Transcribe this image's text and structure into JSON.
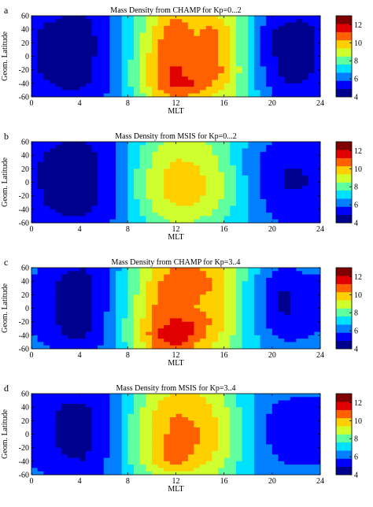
{
  "figure": {
    "panel_letters": [
      "a",
      "b",
      "c",
      "d"
    ],
    "colorbar_ticks": [
      "4",
      "6",
      "8",
      "10",
      "12"
    ],
    "colorbar_colors": [
      "#00008f",
      "#0000ff",
      "#0080ff",
      "#00e0ff",
      "#60ff9f",
      "#d0ff30",
      "#ffd000",
      "#ff6000",
      "#e00000",
      "#800000"
    ]
  },
  "chart_data": [
    {
      "type": "heatmap",
      "panel": "a",
      "title": "Mass Density from CHAMP for Kp=0...2",
      "xlabel": "MLT",
      "ylabel": "Geom. Latitude",
      "xlim": [
        0,
        24
      ],
      "ylim": [
        -60,
        60
      ],
      "x_ticks": [
        0,
        4,
        8,
        12,
        16,
        20,
        24
      ],
      "y_ticks": [
        60,
        40,
        20,
        0,
        -20,
        -40,
        -60
      ],
      "colorbar": {
        "ticks": [
          4,
          6,
          8,
          10,
          12
        ],
        "range": [
          4,
          13
        ]
      },
      "x": [
        0,
        1.5,
        3,
        4.5,
        6,
        7.5,
        9,
        10.5,
        12,
        13.5,
        15,
        16.5,
        18,
        19.5,
        21,
        22.5,
        24
      ],
      "y": [
        60,
        40,
        20,
        0,
        -20,
        -40,
        -60
      ],
      "z": [
        [
          5.4,
          5.2,
          4.9,
          4.9,
          5.4,
          6.5,
          8.0,
          9.3,
          10.3,
          9.6,
          9.4,
          8.8,
          7.4,
          5.9,
          5.3,
          5.1,
          5.4
        ],
        [
          5.1,
          4.6,
          4.4,
          4.6,
          5.3,
          6.4,
          8.2,
          9.8,
          11.2,
          10.1,
          10.6,
          9.4,
          7.4,
          5.3,
          4.5,
          4.5,
          5.1
        ],
        [
          5.0,
          4.5,
          4.3,
          4.5,
          5.2,
          6.5,
          8.4,
          10.2,
          11.4,
          10.3,
          10.9,
          9.5,
          7.3,
          5.3,
          4.4,
          4.6,
          5.0
        ],
        [
          5.0,
          4.6,
          4.4,
          4.5,
          5.3,
          6.6,
          8.5,
          10.4,
          10.5,
          10.6,
          10.4,
          9.6,
          7.2,
          5.4,
          4.4,
          4.4,
          5.0
        ],
        [
          5.1,
          4.6,
          4.4,
          4.6,
          5.3,
          6.7,
          8.7,
          10.6,
          11.6,
          10.3,
          11.2,
          9.7,
          7.4,
          5.5,
          4.6,
          4.5,
          5.1
        ],
        [
          5.3,
          4.9,
          4.6,
          4.8,
          5.5,
          6.7,
          8.7,
          10.5,
          11.8,
          11.3,
          10.3,
          9.2,
          7.4,
          5.8,
          4.9,
          4.9,
          5.3
        ],
        [
          5.6,
          5.3,
          5.1,
          5.2,
          5.7,
          6.4,
          8.0,
          9.6,
          10.4,
          10.0,
          9.4,
          8.7,
          7.4,
          6.2,
          5.5,
          5.4,
          5.6
        ]
      ]
    },
    {
      "type": "heatmap",
      "panel": "b",
      "title": "Mass Density from MSIS for Kp=0...2",
      "xlabel": "MLT",
      "ylabel": "Geom. Latitude",
      "xlim": [
        0,
        24
      ],
      "ylim": [
        -60,
        60
      ],
      "x_ticks": [
        0,
        4,
        8,
        12,
        16,
        20,
        24
      ],
      "y_ticks": [
        60,
        40,
        20,
        0,
        -20,
        -40,
        -60
      ],
      "colorbar": {
        "ticks": [
          4,
          6,
          8,
          10,
          12
        ],
        "range": [
          4,
          13
        ]
      },
      "x": [
        0,
        1.5,
        3,
        4.5,
        6,
        7.5,
        9,
        10.5,
        12,
        13.5,
        15,
        16.5,
        18,
        19.5,
        21,
        22.5,
        24
      ],
      "y": [
        60,
        40,
        20,
        0,
        -20,
        -40,
        -60
      ],
      "z": [
        [
          5.5,
          5.2,
          4.9,
          4.9,
          5.3,
          6.3,
          7.4,
          8.3,
          8.8,
          8.7,
          8.3,
          7.6,
          6.6,
          5.9,
          5.6,
          5.5,
          5.5
        ],
        [
          5.2,
          4.7,
          4.5,
          4.5,
          5.1,
          6.2,
          7.6,
          8.8,
          9.3,
          9.2,
          8.7,
          7.7,
          6.4,
          5.6,
          5.2,
          5.2,
          5.2
        ],
        [
          5.1,
          4.6,
          4.4,
          4.4,
          5.0,
          6.2,
          7.9,
          9.1,
          9.7,
          9.6,
          9.0,
          7.9,
          6.4,
          5.5,
          4.9,
          4.9,
          5.1
        ],
        [
          5.1,
          4.6,
          4.4,
          4.4,
          5.1,
          6.3,
          8.0,
          9.3,
          9.9,
          9.8,
          9.2,
          8.0,
          6.5,
          5.5,
          4.8,
          4.8,
          5.1
        ],
        [
          5.2,
          4.7,
          4.5,
          4.5,
          5.1,
          6.3,
          8.0,
          9.2,
          9.8,
          9.7,
          9.1,
          8.0,
          6.5,
          5.6,
          5.0,
          5.0,
          5.2
        ],
        [
          5.3,
          4.9,
          4.7,
          4.7,
          5.2,
          6.2,
          7.6,
          8.8,
          9.3,
          9.2,
          8.7,
          7.7,
          6.6,
          5.8,
          5.3,
          5.3,
          5.3
        ],
        [
          5.6,
          5.3,
          5.1,
          5.1,
          5.5,
          6.2,
          7.2,
          8.0,
          8.5,
          8.4,
          8.0,
          7.3,
          6.6,
          6.0,
          5.7,
          5.6,
          5.6
        ]
      ]
    },
    {
      "type": "heatmap",
      "panel": "c",
      "title": "Mass Density from CHAMP for Kp=3..4",
      "xlabel": "MLT",
      "ylabel": "Geom. Latitude",
      "xlim": [
        0,
        24
      ],
      "ylim": [
        -60,
        60
      ],
      "x_ticks": [
        0,
        4,
        8,
        12,
        16,
        20,
        24
      ],
      "y_ticks": [
        60,
        40,
        20,
        0,
        -20,
        -40,
        -60
      ],
      "colorbar": {
        "ticks": [
          4,
          6,
          8,
          10,
          12
        ],
        "range": [
          4,
          13
        ]
      },
      "x": [
        0,
        1.5,
        3,
        4.5,
        6,
        7.5,
        9,
        10.5,
        12,
        13.5,
        15,
        16.5,
        18,
        19.5,
        21,
        22.5,
        24
      ],
      "y": [
        60,
        40,
        20,
        0,
        -20,
        -40,
        -60
      ],
      "z": [
        [
          6.0,
          5.6,
          5.0,
          4.9,
          5.6,
          6.9,
          8.4,
          9.6,
          10.4,
          10.4,
          10.0,
          9.0,
          7.4,
          6.2,
          5.8,
          5.9,
          6.0
        ],
        [
          5.7,
          5.2,
          4.6,
          4.6,
          5.4,
          7.0,
          8.6,
          10.2,
          10.9,
          10.6,
          10.4,
          9.2,
          7.3,
          5.8,
          5.1,
          5.6,
          5.7
        ],
        [
          5.6,
          5.0,
          4.5,
          4.5,
          5.4,
          7.1,
          8.8,
          10.5,
          10.5,
          10.4,
          10.2,
          9.2,
          7.1,
          5.6,
          4.7,
          5.4,
          5.6
        ],
        [
          5.6,
          5.0,
          4.4,
          4.5,
          5.5,
          7.2,
          9.0,
          10.6,
          10.6,
          10.3,
          10.1,
          9.1,
          7.1,
          5.6,
          4.6,
          5.2,
          5.6
        ],
        [
          5.7,
          5.1,
          4.5,
          4.6,
          5.6,
          7.3,
          9.2,
          10.8,
          11.4,
          11.2,
          10.2,
          9.0,
          7.2,
          5.8,
          5.0,
          5.3,
          5.7
        ],
        [
          5.9,
          5.4,
          4.8,
          4.8,
          5.8,
          7.4,
          9.4,
          11.3,
          12.3,
          11.0,
          9.8,
          8.8,
          7.3,
          6.1,
          5.5,
          5.7,
          5.9
        ],
        [
          6.2,
          5.8,
          5.3,
          5.2,
          6.0,
          7.2,
          8.9,
          10.5,
          11.0,
          10.1,
          9.2,
          8.3,
          7.3,
          6.5,
          6.1,
          6.1,
          6.2
        ]
      ]
    },
    {
      "type": "heatmap",
      "panel": "d",
      "title": "Mass Density from MSIS for Kp=3..4",
      "xlabel": "MLT",
      "ylabel": "Geom. Latitude",
      "xlim": [
        0,
        24
      ],
      "ylim": [
        -60,
        60
      ],
      "x_ticks": [
        0,
        4,
        8,
        12,
        16,
        20,
        24
      ],
      "y_ticks": [
        60,
        40,
        20,
        0,
        -20,
        -40,
        -60
      ],
      "colorbar": {
        "ticks": [
          4,
          6,
          8,
          10,
          12
        ],
        "range": [
          4,
          13
        ]
      },
      "x": [
        0,
        1.5,
        3,
        4.5,
        6,
        7.5,
        9,
        10.5,
        12,
        13.5,
        15,
        16.5,
        18,
        19.5,
        21,
        22.5,
        24
      ],
      "y": [
        60,
        40,
        20,
        0,
        -20,
        -40,
        -60
      ],
      "z": [
        [
          5.9,
          5.5,
          5.2,
          5.1,
          5.6,
          6.7,
          8.0,
          9.0,
          9.6,
          9.5,
          9.0,
          8.1,
          7.0,
          6.3,
          6.0,
          5.9,
          5.9
        ],
        [
          5.6,
          5.1,
          4.8,
          4.8,
          5.5,
          6.8,
          8.3,
          9.5,
          10.1,
          10.0,
          9.4,
          8.3,
          6.9,
          6.0,
          5.5,
          5.5,
          5.6
        ],
        [
          5.5,
          5.0,
          4.6,
          4.6,
          5.4,
          6.8,
          8.5,
          9.8,
          10.5,
          10.3,
          9.7,
          8.4,
          6.9,
          5.8,
          5.3,
          5.4,
          5.5
        ],
        [
          5.5,
          5.0,
          4.6,
          4.6,
          5.4,
          6.9,
          8.6,
          10.0,
          10.6,
          10.5,
          9.8,
          8.5,
          6.9,
          5.8,
          5.3,
          5.3,
          5.5
        ],
        [
          5.6,
          5.1,
          4.7,
          4.7,
          5.5,
          6.9,
          8.6,
          10.0,
          10.6,
          10.4,
          9.7,
          8.5,
          7.0,
          5.9,
          5.4,
          5.4,
          5.6
        ],
        [
          5.7,
          5.3,
          5.0,
          4.9,
          5.6,
          6.9,
          8.4,
          9.8,
          10.8,
          10.0,
          9.3,
          8.2,
          7.0,
          6.1,
          5.7,
          5.7,
          5.7
        ],
        [
          6.0,
          5.7,
          5.4,
          5.3,
          5.8,
          6.7,
          7.8,
          8.7,
          9.2,
          9.1,
          8.6,
          7.8,
          7.0,
          6.4,
          6.1,
          6.0,
          6.0
        ]
      ]
    }
  ]
}
